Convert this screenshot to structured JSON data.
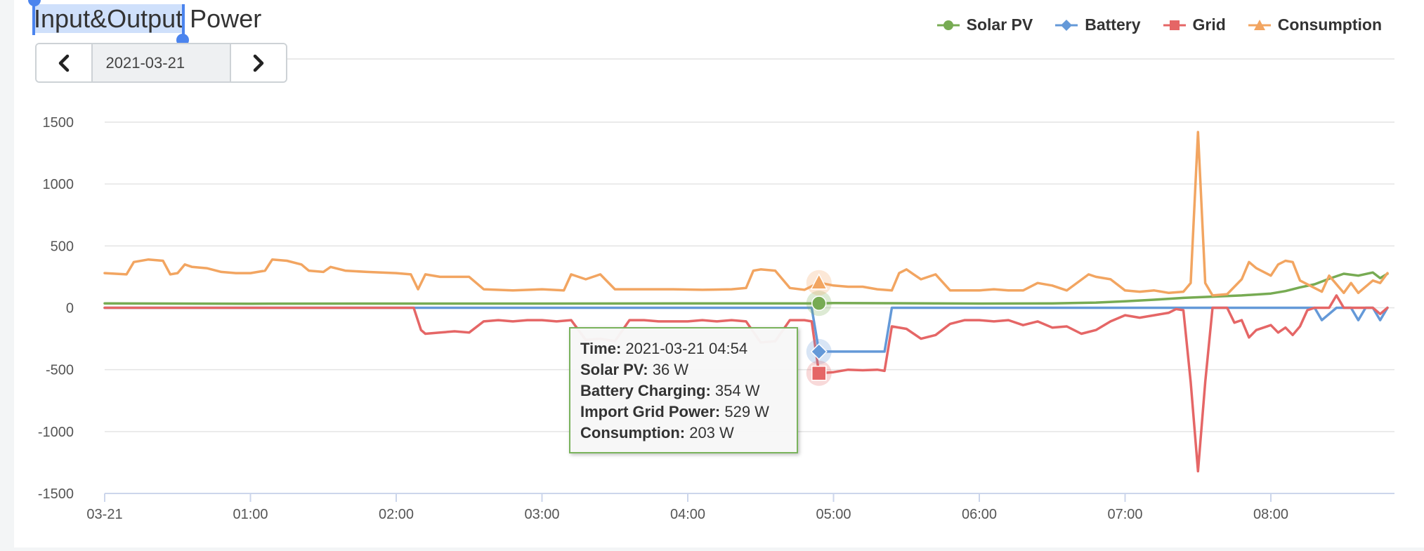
{
  "header": {
    "title_selected": "Input&Output",
    "title_rest": " Power"
  },
  "date_nav": {
    "date": "2021-03-21"
  },
  "legend": [
    {
      "name": "Solar PV",
      "color": "#77ab53",
      "marker": "circle"
    },
    {
      "name": "Battery",
      "color": "#6499d8",
      "marker": "diamond"
    },
    {
      "name": "Grid",
      "color": "#e56666",
      "marker": "square"
    },
    {
      "name": "Consumption",
      "color": "#f2a561",
      "marker": "triangle"
    }
  ],
  "tooltip": {
    "time_label": "Time:",
    "time_value": " 2021-03-21 04:54",
    "solar_label": "Solar PV:",
    "solar_value": " 36 W",
    "battery_label": "Battery Charging:",
    "battery_value": " 354 W",
    "grid_label": "Import Grid Power:",
    "grid_value": " 529 W",
    "consumption_label": "Consumption:",
    "consumption_value": " 203 W"
  },
  "chart_data": {
    "type": "line",
    "title": "",
    "xlabel": "",
    "ylabel": "",
    "ylim": [
      -1500,
      1500
    ],
    "yticks": [
      1500,
      1000,
      500,
      0,
      -500,
      -1000,
      -1500
    ],
    "xlim": [
      0,
      8.8
    ],
    "xticks": [
      {
        "value": 0,
        "label": "03-21"
      },
      {
        "value": 1,
        "label": "01:00"
      },
      {
        "value": 2,
        "label": "02:00"
      },
      {
        "value": 3,
        "label": "03:00"
      },
      {
        "value": 4,
        "label": "04:00"
      },
      {
        "value": 5,
        "label": "05:00"
      },
      {
        "value": 6,
        "label": "06:00"
      },
      {
        "value": 7,
        "label": "07:00"
      },
      {
        "value": 8,
        "label": "08:00"
      }
    ],
    "x_unit": "hours since 2021-03-21 00:00",
    "grid": true,
    "legend_position": "top-right",
    "highlight_x": 4.9,
    "series": [
      {
        "name": "Solar PV",
        "color": "#77ab53",
        "marker": "circle",
        "points": [
          [
            0,
            35
          ],
          [
            1,
            33
          ],
          [
            2,
            34
          ],
          [
            3,
            34
          ],
          [
            4,
            36
          ],
          [
            4.9,
            36
          ],
          [
            5,
            38
          ],
          [
            5.4,
            37
          ],
          [
            6,
            34
          ],
          [
            6.5,
            36
          ],
          [
            6.8,
            42
          ],
          [
            7,
            52
          ],
          [
            7.2,
            65
          ],
          [
            7.4,
            80
          ],
          [
            7.6,
            90
          ],
          [
            7.8,
            100
          ],
          [
            8,
            115
          ],
          [
            8.1,
            135
          ],
          [
            8.2,
            165
          ],
          [
            8.3,
            190
          ],
          [
            8.4,
            235
          ],
          [
            8.5,
            275
          ],
          [
            8.6,
            260
          ],
          [
            8.7,
            285
          ],
          [
            8.75,
            240
          ],
          [
            8.8,
            275
          ]
        ]
      },
      {
        "name": "Battery",
        "color": "#6499d8",
        "marker": "diamond",
        "points": [
          [
            0,
            0
          ],
          [
            2.12,
            0
          ],
          [
            2.17,
            0
          ],
          [
            4.85,
            0
          ],
          [
            4.9,
            -354
          ],
          [
            5.35,
            -354
          ],
          [
            5.4,
            0
          ],
          [
            8.3,
            0
          ],
          [
            8.35,
            -100
          ],
          [
            8.45,
            0
          ],
          [
            8.55,
            0
          ],
          [
            8.6,
            -100
          ],
          [
            8.65,
            0
          ],
          [
            8.7,
            0
          ],
          [
            8.75,
            -100
          ],
          [
            8.8,
            0
          ]
        ]
      },
      {
        "name": "Grid",
        "color": "#e56666",
        "marker": "square",
        "points": [
          [
            0,
            0
          ],
          [
            2.12,
            0
          ],
          [
            2.17,
            -180
          ],
          [
            2.2,
            -210
          ],
          [
            2.3,
            -200
          ],
          [
            2.4,
            -190
          ],
          [
            2.5,
            -200
          ],
          [
            2.6,
            -110
          ],
          [
            2.7,
            -100
          ],
          [
            2.8,
            -110
          ],
          [
            2.9,
            -100
          ],
          [
            3,
            -100
          ],
          [
            3.1,
            -110
          ],
          [
            3.2,
            -100
          ],
          [
            3.3,
            -260
          ],
          [
            3.4,
            -250
          ],
          [
            3.5,
            -270
          ],
          [
            3.6,
            -100
          ],
          [
            3.7,
            -100
          ],
          [
            3.8,
            -110
          ],
          [
            4,
            -110
          ],
          [
            4.1,
            -100
          ],
          [
            4.2,
            -110
          ],
          [
            4.3,
            -100
          ],
          [
            4.4,
            -110
          ],
          [
            4.5,
            -280
          ],
          [
            4.6,
            -270
          ],
          [
            4.7,
            -100
          ],
          [
            4.8,
            -100
          ],
          [
            4.85,
            -110
          ],
          [
            4.9,
            -529
          ],
          [
            5,
            -520
          ],
          [
            5.1,
            -500
          ],
          [
            5.2,
            -505
          ],
          [
            5.3,
            -500
          ],
          [
            5.35,
            -510
          ],
          [
            5.4,
            -150
          ],
          [
            5.5,
            -170
          ],
          [
            5.6,
            -250
          ],
          [
            5.7,
            -220
          ],
          [
            5.8,
            -130
          ],
          [
            5.9,
            -100
          ],
          [
            6,
            -100
          ],
          [
            6.1,
            -110
          ],
          [
            6.2,
            -100
          ],
          [
            6.3,
            -140
          ],
          [
            6.4,
            -110
          ],
          [
            6.5,
            -160
          ],
          [
            6.6,
            -150
          ],
          [
            6.7,
            -210
          ],
          [
            6.8,
            -180
          ],
          [
            6.9,
            -110
          ],
          [
            7,
            -60
          ],
          [
            7.1,
            -80
          ],
          [
            7.2,
            -60
          ],
          [
            7.3,
            -40
          ],
          [
            7.35,
            -10
          ],
          [
            7.4,
            -20
          ],
          [
            7.45,
            -600
          ],
          [
            7.5,
            -1320
          ],
          [
            7.55,
            -600
          ],
          [
            7.6,
            0
          ],
          [
            7.7,
            0
          ],
          [
            7.75,
            -120
          ],
          [
            7.8,
            -100
          ],
          [
            7.85,
            -240
          ],
          [
            7.9,
            -180
          ],
          [
            8,
            -140
          ],
          [
            8.05,
            -200
          ],
          [
            8.1,
            -160
          ],
          [
            8.15,
            -220
          ],
          [
            8.2,
            -150
          ],
          [
            8.25,
            -20
          ],
          [
            8.3,
            0
          ],
          [
            8.4,
            0
          ],
          [
            8.45,
            100
          ],
          [
            8.5,
            0
          ],
          [
            8.6,
            0
          ],
          [
            8.7,
            0
          ],
          [
            8.75,
            -50
          ],
          [
            8.8,
            0
          ]
        ]
      },
      {
        "name": "Consumption",
        "color": "#f2a561",
        "marker": "triangle",
        "points": [
          [
            0,
            280
          ],
          [
            0.15,
            270
          ],
          [
            0.2,
            370
          ],
          [
            0.3,
            390
          ],
          [
            0.4,
            380
          ],
          [
            0.45,
            270
          ],
          [
            0.5,
            280
          ],
          [
            0.55,
            350
          ],
          [
            0.6,
            330
          ],
          [
            0.7,
            320
          ],
          [
            0.8,
            290
          ],
          [
            0.9,
            280
          ],
          [
            1,
            280
          ],
          [
            1.1,
            300
          ],
          [
            1.15,
            390
          ],
          [
            1.25,
            380
          ],
          [
            1.35,
            350
          ],
          [
            1.4,
            300
          ],
          [
            1.5,
            290
          ],
          [
            1.55,
            330
          ],
          [
            1.65,
            300
          ],
          [
            1.8,
            290
          ],
          [
            2,
            280
          ],
          [
            2.1,
            270
          ],
          [
            2.15,
            150
          ],
          [
            2.2,
            270
          ],
          [
            2.3,
            250
          ],
          [
            2.5,
            250
          ],
          [
            2.6,
            150
          ],
          [
            2.8,
            140
          ],
          [
            3,
            150
          ],
          [
            3.15,
            140
          ],
          [
            3.2,
            270
          ],
          [
            3.3,
            230
          ],
          [
            3.4,
            270
          ],
          [
            3.5,
            150
          ],
          [
            3.7,
            150
          ],
          [
            3.9,
            150
          ],
          [
            4.1,
            145
          ],
          [
            4.3,
            150
          ],
          [
            4.4,
            160
          ],
          [
            4.45,
            300
          ],
          [
            4.5,
            310
          ],
          [
            4.6,
            300
          ],
          [
            4.7,
            160
          ],
          [
            4.8,
            145
          ],
          [
            4.9,
            203
          ],
          [
            5,
            180
          ],
          [
            5.1,
            170
          ],
          [
            5.2,
            170
          ],
          [
            5.3,
            150
          ],
          [
            5.4,
            140
          ],
          [
            5.45,
            280
          ],
          [
            5.5,
            310
          ],
          [
            5.55,
            270
          ],
          [
            5.6,
            230
          ],
          [
            5.7,
            270
          ],
          [
            5.8,
            140
          ],
          [
            6,
            140
          ],
          [
            6.1,
            150
          ],
          [
            6.2,
            140
          ],
          [
            6.3,
            140
          ],
          [
            6.4,
            200
          ],
          [
            6.5,
            180
          ],
          [
            6.6,
            140
          ],
          [
            6.75,
            270
          ],
          [
            6.8,
            250
          ],
          [
            6.9,
            230
          ],
          [
            7,
            140
          ],
          [
            7.1,
            130
          ],
          [
            7.2,
            140
          ],
          [
            7.3,
            120
          ],
          [
            7.4,
            130
          ],
          [
            7.45,
            200
          ],
          [
            7.5,
            1420
          ],
          [
            7.55,
            200
          ],
          [
            7.6,
            100
          ],
          [
            7.7,
            110
          ],
          [
            7.8,
            230
          ],
          [
            7.85,
            370
          ],
          [
            7.9,
            320
          ],
          [
            8,
            260
          ],
          [
            8.05,
            350
          ],
          [
            8.1,
            380
          ],
          [
            8.15,
            370
          ],
          [
            8.2,
            220
          ],
          [
            8.3,
            160
          ],
          [
            8.35,
            130
          ],
          [
            8.4,
            260
          ],
          [
            8.5,
            120
          ],
          [
            8.55,
            200
          ],
          [
            8.6,
            120
          ],
          [
            8.7,
            220
          ],
          [
            8.75,
            200
          ],
          [
            8.8,
            280
          ]
        ]
      }
    ]
  }
}
